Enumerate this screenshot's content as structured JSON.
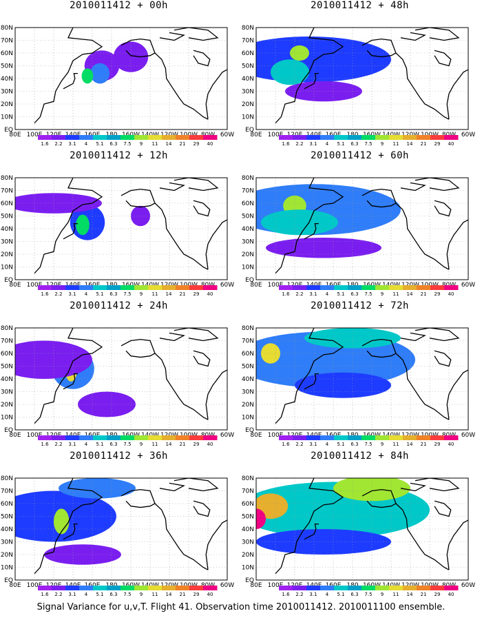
{
  "chart_data": {
    "type": "heatmap",
    "caption": "Signal Variance for u,v,T. Flight 41. Observation time 2010011412. 2010011100 ensemble.",
    "longitude_labels": [
      "80E",
      "100E",
      "120E",
      "140E",
      "160E",
      "180",
      "160W",
      "140W",
      "120W",
      "100W",
      "80W",
      "60W"
    ],
    "latitude_labels": [
      "EQ",
      "10N",
      "20N",
      "30N",
      "40N",
      "50N",
      "60N",
      "70N",
      "80N"
    ],
    "colorbar": {
      "labels": [
        "1.6",
        "2.2",
        "3.1",
        "4",
        "5.1",
        "6.3",
        "7.5",
        "9",
        "11",
        "14",
        "21",
        "29",
        "40"
      ],
      "colors": [
        "#a020f0",
        "#7a1ef0",
        "#1e3cff",
        "#2f7df8",
        "#00c8c8",
        "#00a0c8",
        "#00dc64",
        "#a0e632",
        "#e6dc32",
        "#e6af2d",
        "#f08228",
        "#fa3c3c",
        "#f00082"
      ]
    },
    "panels": [
      {
        "title": "2010011412 + 00h",
        "lead": "00h",
        "blobs": [
          [
            170,
            50,
            18,
            12,
            1
          ],
          [
            168,
            44,
            10,
            8,
            3
          ],
          [
            155,
            42,
            6,
            6,
            6
          ],
          [
            200,
            57,
            18,
            12,
            1
          ]
        ]
      },
      {
        "title": "2010011412 + 12h",
        "lead": "12h",
        "blobs": [
          [
            155,
            45,
            18,
            14,
            2
          ],
          [
            150,
            43,
            7,
            8,
            6
          ],
          [
            120,
            60,
            50,
            8,
            1
          ],
          [
            210,
            50,
            10,
            8,
            1
          ]
        ]
      },
      {
        "title": "2010011412 + 24h",
        "lead": "24h",
        "blobs": [
          [
            140,
            48,
            22,
            16,
            3
          ],
          [
            138,
            46,
            6,
            8,
            8
          ],
          [
            110,
            55,
            50,
            15,
            1
          ],
          [
            175,
            20,
            30,
            10,
            1
          ]
        ]
      },
      {
        "title": "2010011412 + 36h",
        "lead": "36h",
        "blobs": [
          [
            120,
            50,
            65,
            20,
            2
          ],
          [
            128,
            46,
            8,
            10,
            7
          ],
          [
            150,
            20,
            40,
            8,
            1
          ],
          [
            165,
            72,
            40,
            8,
            3
          ]
        ]
      },
      {
        "title": "2010011412 + 48h",
        "lead": "48h",
        "blobs": [
          [
            135,
            55,
            85,
            18,
            2
          ],
          [
            125,
            60,
            10,
            6,
            7
          ],
          [
            150,
            30,
            40,
            8,
            1
          ],
          [
            115,
            45,
            20,
            10,
            4
          ]
        ]
      },
      {
        "title": "2010011412 + 60h",
        "lead": "60h",
        "blobs": [
          [
            140,
            55,
            90,
            20,
            3
          ],
          [
            120,
            58,
            12,
            8,
            7
          ],
          [
            125,
            45,
            40,
            10,
            4
          ],
          [
            150,
            25,
            60,
            8,
            1
          ]
        ]
      },
      {
        "title": "2010011412 + 72h",
        "lead": "72h",
        "blobs": [
          [
            150,
            55,
            95,
            22,
            3
          ],
          [
            95,
            60,
            10,
            8,
            8
          ],
          [
            170,
            35,
            50,
            10,
            2
          ],
          [
            180,
            72,
            50,
            8,
            4
          ]
        ]
      },
      {
        "title": "2010011412 + 84h",
        "lead": "84h",
        "blobs": [
          [
            160,
            55,
            100,
            22,
            4
          ],
          [
            95,
            58,
            18,
            10,
            9
          ],
          [
            80,
            48,
            10,
            8,
            12
          ],
          [
            200,
            72,
            40,
            10,
            7
          ],
          [
            150,
            30,
            70,
            10,
            2
          ]
        ]
      }
    ]
  }
}
